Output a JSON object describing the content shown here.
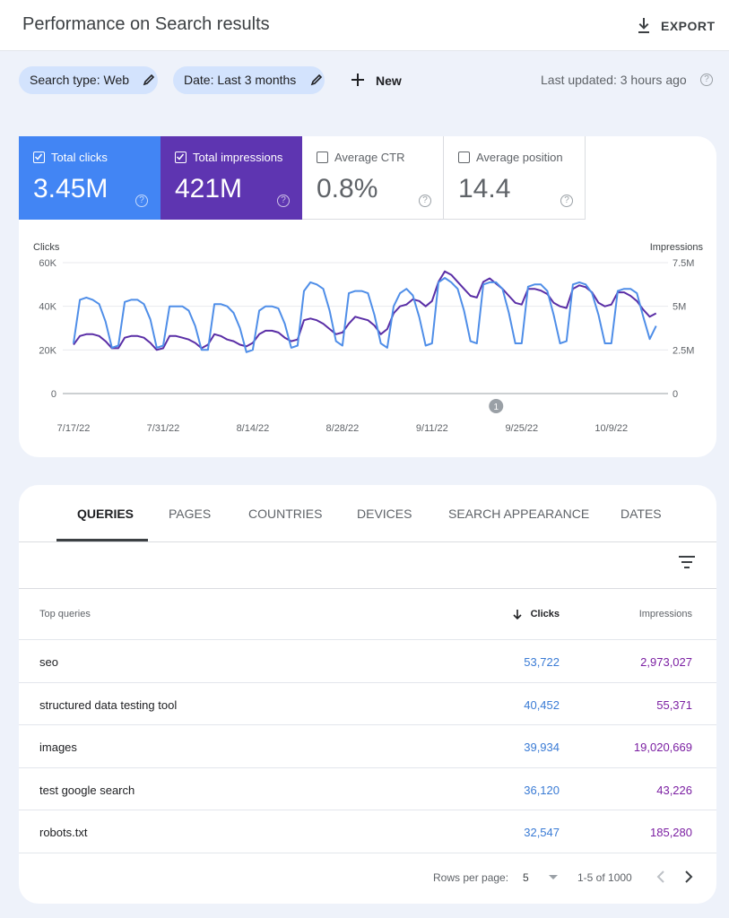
{
  "header": {
    "title": "Performance on Search results",
    "export": "EXPORT"
  },
  "filters": {
    "chips": [
      "Search type: Web",
      "Date: Last 3 months"
    ],
    "new": "New",
    "last_updated": "Last updated: 3 hours ago"
  },
  "metrics": [
    {
      "label": "Total clicks",
      "value": "3.45M",
      "selected": true,
      "color": "#4285f4"
    },
    {
      "label": "Total impressions",
      "value": "421M",
      "selected": true,
      "color": "#5e35b1"
    },
    {
      "label": "Average CTR",
      "value": "0.8%",
      "selected": false
    },
    {
      "label": "Average position",
      "value": "14.4",
      "selected": false
    }
  ],
  "chart_data": {
    "type": "line",
    "categories": [
      "7/17/22",
      null,
      null,
      null,
      null,
      null,
      null,
      null,
      null,
      null,
      null,
      null,
      null,
      null,
      "7/31/22",
      null,
      null,
      null,
      null,
      null,
      null,
      null,
      null,
      null,
      null,
      null,
      null,
      null,
      "8/14/22",
      null,
      null,
      null,
      null,
      null,
      null,
      null,
      null,
      null,
      null,
      null,
      null,
      null,
      "8/28/22",
      null,
      null,
      null,
      null,
      null,
      null,
      null,
      null,
      null,
      null,
      null,
      null,
      null,
      "9/11/22",
      null,
      null,
      null,
      null,
      null,
      null,
      null,
      null,
      null,
      null,
      null,
      null,
      null,
      "9/25/22",
      null,
      null,
      null,
      null,
      null,
      null,
      null,
      null,
      null,
      null,
      null,
      null,
      null,
      "10/9/22",
      null,
      null,
      null,
      null,
      null,
      null,
      null
    ],
    "series": [
      {
        "name": "Clicks",
        "color": "#4f8ee8",
        "values": [
          23000,
          43000,
          44000,
          43000,
          41000,
          33000,
          21000,
          22000,
          42000,
          43000,
          43000,
          41000,
          34000,
          21000,
          22000,
          40000,
          40000,
          40000,
          38000,
          31000,
          20000,
          20000,
          41000,
          41000,
          40000,
          37000,
          30000,
          19000,
          20000,
          38000,
          40000,
          40000,
          39000,
          32000,
          21000,
          22000,
          47000,
          51000,
          50000,
          48000,
          38000,
          24000,
          22000,
          46000,
          47000,
          47000,
          46000,
          36000,
          23000,
          21000,
          40000,
          46000,
          48000,
          45000,
          35000,
          22000,
          23000,
          51000,
          53000,
          51000,
          48000,
          38000,
          24000,
          23000,
          50000,
          51000,
          51000,
          48000,
          37000,
          23000,
          23000,
          49000,
          50000,
          50000,
          47000,
          36000,
          23000,
          24000,
          50000,
          51000,
          50000,
          46000,
          36000,
          23000,
          23000,
          47000,
          48000,
          48000,
          46000,
          35000,
          25000,
          31000
        ]
      },
      {
        "name": "Impressions",
        "color": "#5a2ea6",
        "axis": "y2",
        "values": [
          2800000,
          3300000,
          3400000,
          3400000,
          3300000,
          3000000,
          2600000,
          2600000,
          3200000,
          3300000,
          3300000,
          3200000,
          2900000,
          2500000,
          2600000,
          3300000,
          3300000,
          3200000,
          3100000,
          2900000,
          2600000,
          2800000,
          3400000,
          3300000,
          3100000,
          3000000,
          2800000,
          2700000,
          2900000,
          3400000,
          3600000,
          3600000,
          3500000,
          3200000,
          3000000,
          3100000,
          4200000,
          4300000,
          4200000,
          4000000,
          3700000,
          3400000,
          3500000,
          4000000,
          4400000,
          4300000,
          4200000,
          3900000,
          3400000,
          3700000,
          4600000,
          5000000,
          5100000,
          5400000,
          5300000,
          5000000,
          5300000,
          6400000,
          7000000,
          6800000,
          6400000,
          6000000,
          5600000,
          5500000,
          6400000,
          6600000,
          6300000,
          6000000,
          5600000,
          5200000,
          5100000,
          6000000,
          6000000,
          5900000,
          5700000,
          5200000,
          5000000,
          4900000,
          6000000,
          6200000,
          6100000,
          5800000,
          5200000,
          5000000,
          5100000,
          5800000,
          5800000,
          5600000,
          5300000,
          4800000,
          4400000,
          4600000
        ]
      }
    ],
    "ylim": [
      0,
      60000
    ],
    "yticks": [
      0,
      {
        "value": 20000,
        "label": "20K"
      },
      {
        "value": 40000,
        "label": "40K"
      },
      {
        "value": 60000,
        "label": "60K"
      }
    ],
    "y2lim": [
      0,
      7500000
    ],
    "y2ticks": [
      0,
      {
        "value": 2500000,
        "label": "2.5M"
      },
      {
        "value": 5000000,
        "label": "5M"
      },
      {
        "value": 7500000,
        "label": "7.5M"
      }
    ],
    "grid": true,
    "annotations": [
      {
        "text": "1"
      }
    ]
  },
  "tabs": {
    "items": [
      "QUERIES",
      "PAGES",
      "COUNTRIES",
      "DEVICES",
      "SEARCH APPEARANCE",
      "DATES"
    ],
    "active": 0
  },
  "table": {
    "columns": [
      "Top queries",
      "Clicks",
      "Impressions"
    ],
    "rows": [
      [
        "seo",
        "53,722",
        "2,973,027"
      ],
      [
        "structured data testing tool",
        "40,452",
        "55,371"
      ],
      [
        "images",
        "39,934",
        "19,020,669"
      ],
      [
        "test google search",
        "36,120",
        "43,226"
      ],
      [
        "robots.txt",
        "32,547",
        "185,280"
      ]
    ]
  },
  "pagination": {
    "rows_per_page_label": "Rows per page:",
    "rows_per_page": "5",
    "range": "1-5 of 1000"
  }
}
